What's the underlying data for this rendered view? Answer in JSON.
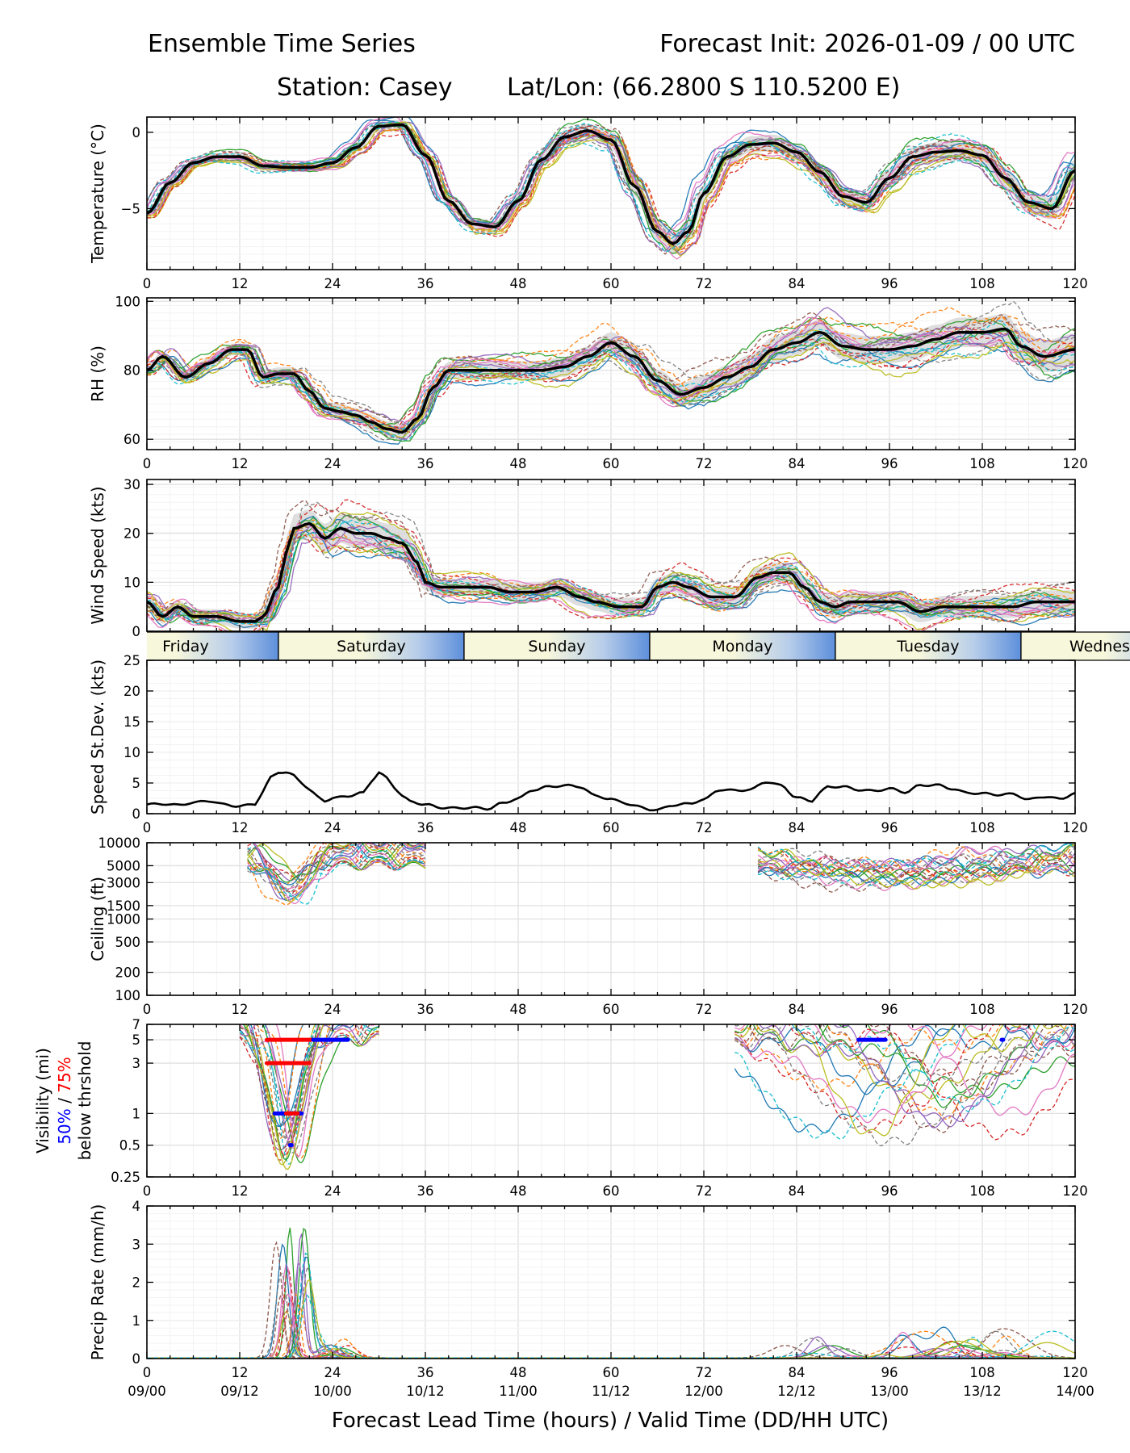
{
  "header": {
    "title_left": "Ensemble Time Series",
    "title_right": "Forecast Init: 2026-01-09 / 00 UTC",
    "station": "Station: Casey",
    "latlon": "Lat/Lon: (66.2800 S 110.5200 E)"
  },
  "chart_data": {
    "type": "line",
    "x_ticks": [
      0,
      12,
      24,
      36,
      48,
      60,
      72,
      84,
      96,
      108,
      120
    ],
    "x_tick_labels": [
      "0",
      "12",
      "24",
      "36",
      "48",
      "60",
      "72",
      "84",
      "96",
      "108",
      "120"
    ],
    "valid_time_labels": [
      "09/00",
      "09/12",
      "10/00",
      "10/12",
      "11/00",
      "11/12",
      "12/00",
      "12/12",
      "13/00",
      "13/12",
      "14/00"
    ],
    "xlabel": "Forecast Lead Time (hours) / Valid Time (DD/HH UTC)",
    "xlim": [
      0,
      120
    ],
    "member_colors": [
      "#1f77b4",
      "#ff7f0e",
      "#2ca02c",
      "#d62728",
      "#9467bd",
      "#8c564b",
      "#e377c2",
      "#7f7f7f",
      "#bcbd22",
      "#17becf"
    ],
    "days": [
      {
        "name": "Friday",
        "start": -7,
        "end": 17
      },
      {
        "name": "Saturday",
        "start": 17,
        "end": 41
      },
      {
        "name": "Sunday",
        "start": 41,
        "end": 65
      },
      {
        "name": "Monday",
        "start": 65,
        "end": 89
      },
      {
        "name": "Tuesday",
        "start": 89,
        "end": 113
      },
      {
        "name": "Wednesday",
        "start": 113,
        "end": 137
      }
    ],
    "panels": [
      {
        "id": "temperature",
        "ylabel": "Temperature (°C)",
        "scale": "linear",
        "ylim": [
          -9,
          1
        ],
        "yticks": [
          0,
          -5
        ],
        "ytick_labels": [
          "0",
          "−5"
        ],
        "mean": {
          "x": [
            0,
            3,
            6,
            9,
            12,
            15,
            18,
            21,
            24,
            27,
            30,
            33,
            36,
            39,
            42,
            45,
            48,
            51,
            54,
            57,
            60,
            63,
            66,
            68,
            70,
            72,
            75,
            78,
            81,
            84,
            87,
            90,
            93,
            96,
            99,
            102,
            105,
            108,
            111,
            114,
            117,
            120
          ],
          "y": [
            -5.3,
            -3.3,
            -2.0,
            -1.6,
            -1.6,
            -2.2,
            -2.3,
            -2.3,
            -2.0,
            -1.0,
            0.4,
            0.5,
            -1.5,
            -4.5,
            -6.0,
            -6.2,
            -4.5,
            -1.8,
            -0.3,
            0.1,
            -0.5,
            -3.5,
            -6.5,
            -7.3,
            -6.5,
            -4.0,
            -1.6,
            -0.8,
            -0.7,
            -1.3,
            -2.6,
            -4.2,
            -4.6,
            -3.0,
            -1.6,
            -1.3,
            -1.2,
            -1.5,
            -3.0,
            -4.6,
            -5.0,
            -2.5
          ]
        }
      },
      {
        "id": "rh",
        "ylabel": "RH (%)",
        "scale": "linear",
        "ylim": [
          57,
          101
        ],
        "yticks": [
          60,
          80,
          100
        ],
        "ytick_labels": [
          "60",
          "80",
          "100"
        ],
        "mean": {
          "x": [
            0,
            2,
            5,
            8,
            11,
            13,
            15,
            17,
            19,
            21,
            23,
            25,
            27,
            29,
            31,
            33,
            35,
            37,
            39,
            42,
            45,
            48,
            51,
            54,
            57,
            60,
            63,
            66,
            69,
            72,
            75,
            78,
            81,
            84,
            87,
            90,
            93,
            96,
            99,
            102,
            105,
            108,
            111,
            113,
            116,
            120
          ],
          "y": [
            80,
            84,
            78,
            82,
            86,
            86,
            78,
            79,
            79,
            74,
            69,
            68,
            67,
            65,
            63,
            62,
            66,
            75,
            80,
            80,
            80,
            80,
            80,
            81,
            84,
            88,
            84,
            77,
            73,
            75,
            78,
            81,
            86,
            88,
            91,
            87,
            86,
            86,
            87,
            89,
            91,
            91,
            92,
            87,
            84,
            86
          ]
        }
      },
      {
        "id": "wind",
        "ylabel": "Wind Speed (kts)",
        "scale": "linear",
        "ylim": [
          0,
          31
        ],
        "yticks": [
          0,
          10,
          20,
          30
        ],
        "ytick_labels": [
          "0",
          "10",
          "20",
          "30"
        ],
        "mean": {
          "x": [
            0,
            2,
            4,
            6,
            9,
            12,
            14,
            15,
            17,
            18,
            19,
            21,
            23,
            25,
            27,
            29,
            31,
            33,
            35,
            36,
            38,
            41,
            44,
            47,
            50,
            53,
            56,
            58,
            61,
            64,
            66,
            68,
            70,
            73,
            76,
            79,
            81,
            83,
            85,
            87,
            89,
            91,
            94,
            97,
            100,
            103,
            106,
            109,
            112,
            115,
            118,
            120
          ],
          "y": [
            6,
            3,
            5,
            3,
            3,
            2,
            2,
            3,
            9,
            16,
            21,
            22,
            19,
            21,
            20,
            20,
            19,
            18,
            14,
            10,
            9,
            9,
            9,
            8,
            8,
            9,
            7,
            6,
            5,
            5,
            9,
            10,
            9,
            7,
            7,
            11,
            12,
            12,
            9,
            6,
            5,
            6,
            6,
            6,
            4,
            5,
            5,
            5,
            5,
            6,
            6,
            6
          ]
        }
      },
      {
        "id": "speed_sd",
        "ylabel": "Speed St.Dev. (kts)",
        "scale": "linear",
        "ylim": [
          0,
          25
        ],
        "yticks": [
          0,
          5,
          10,
          15,
          20,
          25
        ],
        "ytick_labels": [
          "0",
          "5",
          "10",
          "15",
          "20",
          "25"
        ],
        "mean": {
          "x": [
            0,
            2,
            4,
            6,
            8,
            10,
            12,
            14,
            15,
            16,
            17,
            18,
            19,
            20,
            21,
            22,
            23,
            24,
            26,
            28,
            29,
            30,
            31,
            32,
            33,
            34,
            36,
            38,
            40,
            42,
            44,
            46,
            48,
            50,
            52,
            54,
            56,
            58,
            60,
            61,
            62,
            63,
            64,
            65,
            66,
            68,
            70,
            72,
            74,
            76,
            78,
            80,
            82,
            84,
            86,
            87,
            88,
            90,
            92,
            94,
            96,
            98,
            100,
            102,
            104,
            106,
            108,
            110,
            112,
            114,
            116,
            118,
            120
          ],
          "y": [
            1.5,
            1.6,
            1.4,
            1.8,
            2.1,
            1.5,
            1.2,
            1.6,
            3.6,
            5.9,
            6.8,
            6.7,
            6.2,
            5.1,
            3.9,
            2.8,
            2.1,
            2.5,
            2.9,
            3.4,
            5.3,
            6.7,
            5.8,
            4.3,
            2.9,
            2.0,
            1.5,
            1.0,
            0.9,
            1.0,
            0.8,
            1.7,
            2.5,
            3.9,
            4.4,
            4.6,
            4.4,
            2.9,
            2.4,
            2.0,
            1.7,
            1.3,
            1.0,
            0.7,
            0.6,
            1.4,
            1.6,
            2.3,
            3.9,
            3.8,
            3.9,
            5.2,
            4.6,
            2.6,
            2.1,
            3.4,
            4.4,
            4.4,
            3.9,
            3.7,
            4.1,
            3.5,
            4.6,
            4.7,
            4.1,
            3.4,
            3.3,
            3.1,
            3.2,
            2.3,
            2.8,
            2.4,
            3.3
          ]
        }
      },
      {
        "id": "ceiling",
        "ylabel": "Ceiling (ft)",
        "scale": "log",
        "ylim": [
          100,
          10000
        ],
        "yticks": [
          100,
          200,
          500,
          1000,
          1500,
          3000,
          5000,
          10000
        ],
        "ytick_labels": [
          "100",
          "200",
          "500",
          "1000",
          "1500",
          "3000",
          "5000",
          "10000"
        ]
      },
      {
        "id": "visibility",
        "ylabel_lines": [
          "Visibility (mi)",
          "50% / 75%",
          "below thrshold"
        ],
        "legend_50": "50%",
        "legend_sep": " / ",
        "legend_75": "75%",
        "scale": "log",
        "ylim": [
          0.25,
          7
        ],
        "yticks": [
          0.25,
          0.5,
          1,
          3,
          5,
          7
        ],
        "ytick_labels": [
          "0.25",
          "0.5",
          "1",
          "3",
          "5",
          "7"
        ],
        "threshold_bars": [
          {
            "threshold": 5,
            "color": "red",
            "x": [
              15.5,
              21.5
            ]
          },
          {
            "threshold": 5,
            "color": "blue",
            "x": [
              21.5,
              26
            ]
          },
          {
            "threshold": 5,
            "color": "blue",
            "x": [
              92,
              95.5
            ]
          },
          {
            "threshold": 5,
            "color": "blue",
            "x": [
              110.5,
              110.7
            ]
          },
          {
            "threshold": 3,
            "color": "red",
            "x": [
              15.5,
              21
            ]
          },
          {
            "threshold": 1,
            "color": "blue",
            "x": [
              16.5,
              20
            ]
          },
          {
            "threshold": 1,
            "color": "red",
            "x": [
              18,
              19.5
            ]
          },
          {
            "threshold": 0.5,
            "color": "blue",
            "x": [
              18.5,
              18.7
            ]
          }
        ]
      },
      {
        "id": "precip",
        "ylabel": "Precip Rate (mm/h)",
        "scale": "linear",
        "ylim": [
          0,
          4
        ],
        "yticks": [
          0,
          1,
          2,
          3,
          4
        ],
        "ytick_labels": [
          "0",
          "1",
          "2",
          "3",
          "4"
        ]
      }
    ]
  }
}
